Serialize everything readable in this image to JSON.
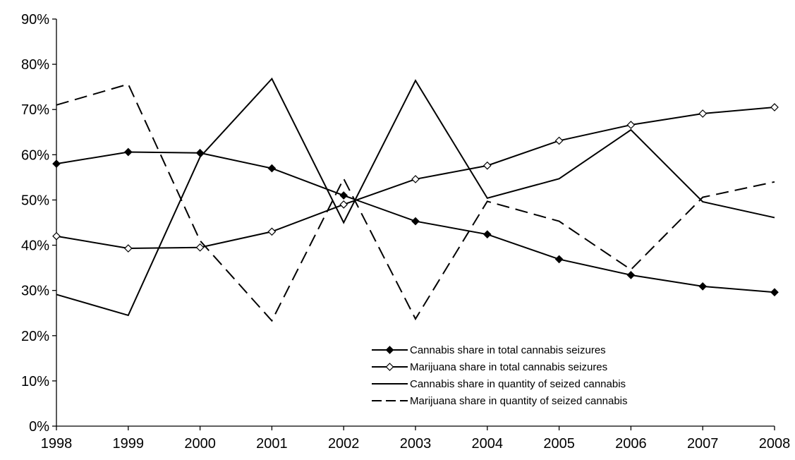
{
  "chart_data": {
    "type": "line",
    "title": "",
    "xlabel": "",
    "ylabel": "",
    "categories": [
      "1998",
      "1999",
      "2000",
      "2001",
      "2002",
      "2003",
      "2004",
      "2005",
      "2006",
      "2007",
      "2008"
    ],
    "ylim": [
      0,
      90
    ],
    "yticks": [
      "0%",
      "10%",
      "20%",
      "30%",
      "40%",
      "50%",
      "60%",
      "70%",
      "80%",
      "90%"
    ],
    "grid": false,
    "legend_position": "bottom-right",
    "series": [
      {
        "name": "Cannabis share in total cannabis seizures",
        "marker": "filled-diamond",
        "line": "solid",
        "color": "#000000",
        "values": [
          58,
          60.6,
          60.4,
          57,
          51,
          45.3,
          42.4,
          36.9,
          33.4,
          30.9,
          29.6
        ]
      },
      {
        "name": "Marijuana share in total cannabis seizures",
        "marker": "open-diamond",
        "line": "solid",
        "color": "#000000",
        "values": [
          42,
          39.3,
          39.5,
          43,
          49,
          54.6,
          57.6,
          63.1,
          66.6,
          69.1,
          70.5
        ]
      },
      {
        "name": "Cannabis share in quantity of seized cannabis",
        "marker": "none",
        "line": "solid",
        "color": "#000000",
        "values": [
          29.1,
          24.5,
          59.5,
          76.8,
          45,
          76.4,
          50.4,
          54.7,
          65.5,
          49.6,
          46.1
        ]
      },
      {
        "name": "Marijuana share in quantity of seized cannabis",
        "marker": "none",
        "line": "dashed",
        "color": "#000000",
        "values": [
          71,
          75.6,
          41,
          23.3,
          54.7,
          23.7,
          49.7,
          45.3,
          34.6,
          50.6,
          54
        ]
      }
    ]
  }
}
